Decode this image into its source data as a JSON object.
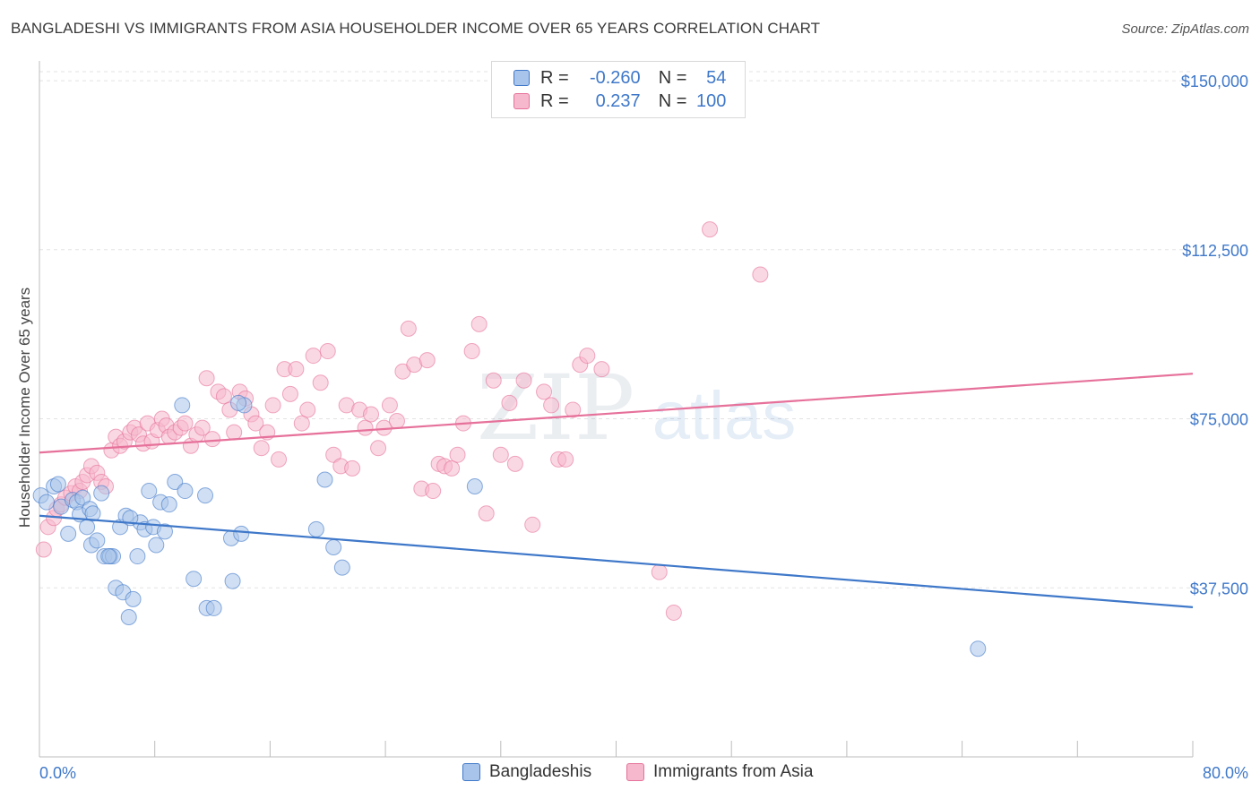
{
  "header": {
    "title": "BANGLADESHI VS IMMIGRANTS FROM ASIA HOUSEHOLDER INCOME OVER 65 YEARS CORRELATION CHART",
    "source": "Source: ZipAtlas.com"
  },
  "legend": {
    "rows": [
      {
        "r_label": "R =",
        "r_value": "-0.260",
        "n_label": "N =",
        "n_value": "54"
      },
      {
        "r_label": "R =",
        "r_value": "0.237",
        "n_label": "N =",
        "n_value": "100"
      }
    ]
  },
  "watermark": {
    "zip": "ZIP",
    "atlas": "atlas"
  },
  "chart_data": {
    "type": "scatter",
    "title": "BANGLADESHI VS IMMIGRANTS FROM ASIA HOUSEHOLDER INCOME OVER 65 YEARS CORRELATION CHART",
    "xlabel": "",
    "ylabel": "Householder Income Over 65 years",
    "xlim": [
      0,
      80
    ],
    "ylim": [
      0,
      152000
    ],
    "x_tick_labels": {
      "min": "0.0%",
      "max": "80.0%"
    },
    "y_ticks": [
      {
        "value": 37500,
        "label": "$37,500"
      },
      {
        "value": 75000,
        "label": "$75,000"
      },
      {
        "value": 112500,
        "label": "$112,500"
      },
      {
        "value": 150000,
        "label": "$150,000"
      }
    ],
    "grid": true,
    "legend_position": "top-center",
    "series": [
      {
        "name": "Bangladeshis",
        "color": "#3f78c9",
        "fill": "#a9c4ea",
        "R": -0.26,
        "N": 54,
        "trend": {
          "x0": 0,
          "y0": 53500,
          "x1": 80,
          "y1": 33200
        },
        "points": [
          [
            0.1,
            58000
          ],
          [
            0.5,
            56500
          ],
          [
            1.0,
            60000
          ],
          [
            1.3,
            60500
          ],
          [
            1.5,
            55500
          ],
          [
            2.0,
            49500
          ],
          [
            2.3,
            57000
          ],
          [
            2.6,
            56500
          ],
          [
            3.0,
            57500
          ],
          [
            2.8,
            53800
          ],
          [
            3.3,
            51000
          ],
          [
            3.5,
            55000
          ],
          [
            3.7,
            54000
          ],
          [
            3.6,
            47000
          ],
          [
            4.0,
            48000
          ],
          [
            4.3,
            58500
          ],
          [
            4.5,
            44500
          ],
          [
            4.9,
            44500
          ],
          [
            5.1,
            44500
          ],
          [
            5.3,
            37500
          ],
          [
            5.6,
            51000
          ],
          [
            5.8,
            36500
          ],
          [
            6.0,
            53500
          ],
          [
            6.2,
            31000
          ],
          [
            6.5,
            35000
          ],
          [
            6.8,
            44500
          ],
          [
            7.0,
            52000
          ],
          [
            7.3,
            50500
          ],
          [
            7.6,
            59000
          ],
          [
            7.9,
            51000
          ],
          [
            8.1,
            47000
          ],
          [
            8.4,
            56500
          ],
          [
            8.7,
            50000
          ],
          [
            9.4,
            61000
          ],
          [
            10.1,
            59000
          ],
          [
            9.9,
            78000
          ],
          [
            10.7,
            39500
          ],
          [
            11.5,
            58000
          ],
          [
            11.6,
            33000
          ],
          [
            13.3,
            48500
          ],
          [
            13.4,
            39000
          ],
          [
            14.0,
            49500
          ],
          [
            14.2,
            78000
          ],
          [
            19.2,
            50500
          ],
          [
            19.8,
            61500
          ],
          [
            20.4,
            46500
          ],
          [
            21.0,
            42000
          ],
          [
            30.2,
            60000
          ],
          [
            65.1,
            24000
          ],
          [
            13.8,
            78500
          ],
          [
            12.1,
            33000
          ],
          [
            4.8,
            44500
          ],
          [
            6.3,
            53000
          ],
          [
            9.0,
            56000
          ]
        ]
      },
      {
        "name": "Immigrants from Asia",
        "color": "#e6719a",
        "fill": "#f5b8cc",
        "R": 0.237,
        "N": 100,
        "trend": {
          "x0": 0,
          "y0": 67500,
          "x1": 80,
          "y1": 85000
        },
        "points": [
          [
            0.3,
            46000
          ],
          [
            0.6,
            51000
          ],
          [
            1.0,
            53000
          ],
          [
            1.2,
            55000
          ],
          [
            1.5,
            56000
          ],
          [
            1.8,
            57500
          ],
          [
            2.2,
            58500
          ],
          [
            2.5,
            60000
          ],
          [
            2.8,
            59000
          ],
          [
            3.0,
            61000
          ],
          [
            3.3,
            62500
          ],
          [
            3.6,
            64500
          ],
          [
            4.0,
            63000
          ],
          [
            4.3,
            61000
          ],
          [
            4.6,
            60000
          ],
          [
            5.0,
            68000
          ],
          [
            5.3,
            71000
          ],
          [
            5.6,
            69000
          ],
          [
            5.9,
            70000
          ],
          [
            6.3,
            72000
          ],
          [
            6.6,
            73000
          ],
          [
            6.9,
            71500
          ],
          [
            7.2,
            69500
          ],
          [
            7.5,
            74000
          ],
          [
            7.8,
            70000
          ],
          [
            8.2,
            72500
          ],
          [
            8.5,
            75000
          ],
          [
            8.8,
            73500
          ],
          [
            9.0,
            71000
          ],
          [
            9.4,
            72000
          ],
          [
            9.8,
            73000
          ],
          [
            10.1,
            74000
          ],
          [
            10.5,
            69000
          ],
          [
            10.9,
            71500
          ],
          [
            11.3,
            73000
          ],
          [
            11.6,
            84000
          ],
          [
            12.0,
            70500
          ],
          [
            12.4,
            81000
          ],
          [
            12.8,
            80000
          ],
          [
            13.2,
            77000
          ],
          [
            13.5,
            72000
          ],
          [
            13.9,
            81000
          ],
          [
            14.3,
            79500
          ],
          [
            14.7,
            76000
          ],
          [
            15.0,
            74000
          ],
          [
            15.4,
            68500
          ],
          [
            15.8,
            72000
          ],
          [
            16.2,
            78000
          ],
          [
            16.6,
            66000
          ],
          [
            17.0,
            86000
          ],
          [
            17.4,
            80500
          ],
          [
            17.8,
            86000
          ],
          [
            18.2,
            74000
          ],
          [
            18.6,
            77000
          ],
          [
            19.0,
            89000
          ],
          [
            19.5,
            83000
          ],
          [
            20.0,
            90000
          ],
          [
            20.4,
            67000
          ],
          [
            20.9,
            64500
          ],
          [
            21.3,
            78000
          ],
          [
            21.7,
            64000
          ],
          [
            22.2,
            77000
          ],
          [
            22.6,
            73000
          ],
          [
            23.0,
            76000
          ],
          [
            23.5,
            68500
          ],
          [
            23.9,
            73000
          ],
          [
            24.3,
            78000
          ],
          [
            24.8,
            74500
          ],
          [
            25.2,
            85500
          ],
          [
            25.6,
            95000
          ],
          [
            26.0,
            87000
          ],
          [
            26.5,
            59500
          ],
          [
            26.9,
            88000
          ],
          [
            27.3,
            59000
          ],
          [
            27.7,
            65000
          ],
          [
            28.1,
            64500
          ],
          [
            28.6,
            64000
          ],
          [
            29.0,
            67000
          ],
          [
            29.4,
            74000
          ],
          [
            30.0,
            90000
          ],
          [
            30.5,
            96000
          ],
          [
            31.0,
            54000
          ],
          [
            31.5,
            83500
          ],
          [
            32.0,
            67000
          ],
          [
            32.6,
            78500
          ],
          [
            33.0,
            65000
          ],
          [
            33.6,
            83500
          ],
          [
            34.2,
            51500
          ],
          [
            35.0,
            81000
          ],
          [
            35.5,
            78000
          ],
          [
            36.0,
            66000
          ],
          [
            36.5,
            66000
          ],
          [
            37.0,
            77000
          ],
          [
            37.5,
            87000
          ],
          [
            38.0,
            89000
          ],
          [
            39.0,
            86000
          ],
          [
            46.5,
            117000
          ],
          [
            50.0,
            107000
          ],
          [
            43.0,
            41000
          ],
          [
            44.0,
            32000
          ]
        ]
      }
    ]
  }
}
